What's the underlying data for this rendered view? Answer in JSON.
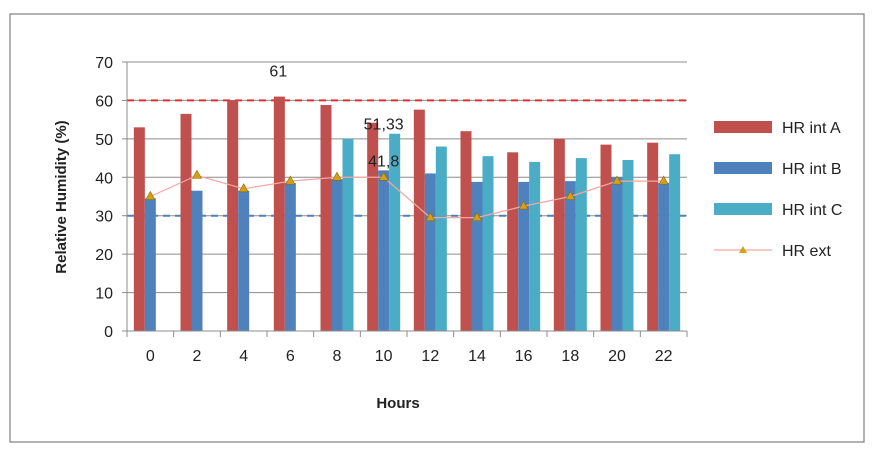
{
  "chart_data": {
    "type": "bar",
    "xlabel": "Hours",
    "ylabel": "Relative Humidity (%)",
    "categories": [
      "0",
      "2",
      "4",
      "6",
      "8",
      "10",
      "12",
      "14",
      "16",
      "18",
      "20",
      "22"
    ],
    "ylim": [
      0,
      70
    ],
    "yticks": [
      0,
      10,
      20,
      30,
      40,
      50,
      60,
      70
    ],
    "grid": true,
    "legend_position": "right",
    "series": [
      {
        "name": "HR int A",
        "kind": "bar",
        "color": "#c0504d",
        "values": [
          53,
          56.5,
          60,
          61,
          58.8,
          54.2,
          57.6,
          52,
          46.5,
          50,
          48.5,
          49
        ]
      },
      {
        "name": "HR int B",
        "kind": "bar",
        "color": "#4f81bd",
        "values": [
          34.5,
          36.5,
          36.5,
          38.5,
          39.5,
          41.8,
          41,
          38.8,
          38.8,
          39,
          40,
          38.5
        ]
      },
      {
        "name": "HR int C",
        "kind": "bar",
        "color": "#4bacc6",
        "values": [
          null,
          null,
          null,
          null,
          50,
          51.33,
          48,
          45.5,
          44,
          45,
          44.5,
          46
        ]
      },
      {
        "name": "HR ext",
        "kind": "line",
        "color": "#f4a6a0",
        "marker_color": "#d4a017",
        "values": [
          35,
          40.5,
          37,
          39,
          40,
          40,
          29.5,
          29.5,
          32.5,
          35,
          39,
          39
        ]
      }
    ],
    "reference_lines": [
      {
        "value": 60,
        "color": "#e03030",
        "style": "dashed"
      },
      {
        "value": 30,
        "color": "#4f81bd",
        "style": "dashed"
      }
    ],
    "annotations": [
      {
        "text": "61",
        "x": "6",
        "y": 61
      },
      {
        "text": "51,33",
        "x": "10",
        "y": 51.33
      },
      {
        "text": "41,8",
        "x": "10",
        "y": 41.8
      }
    ]
  }
}
